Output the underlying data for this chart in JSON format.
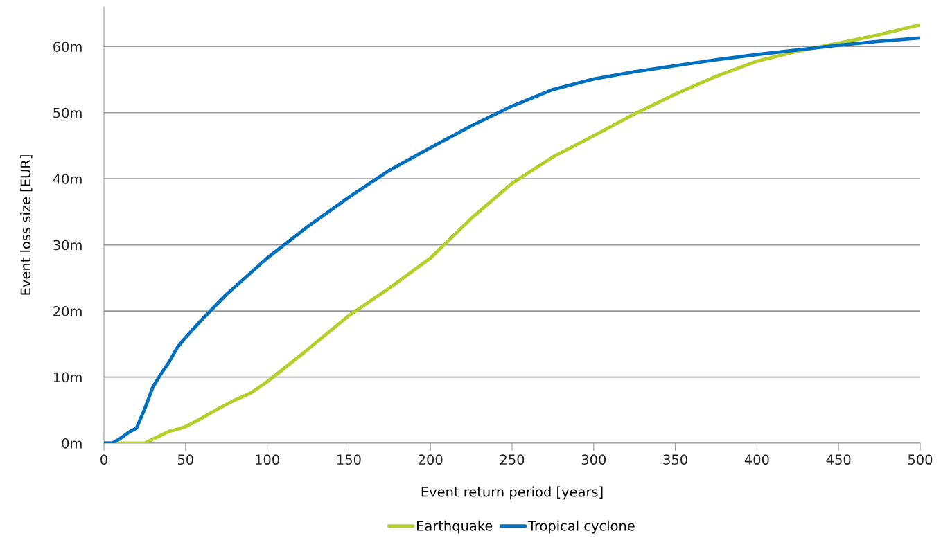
{
  "chart_data": {
    "type": "line",
    "xlabel": "Event return period [years]",
    "ylabel": "Event loss size [EUR]",
    "xlim": [
      0,
      500
    ],
    "xticks": [
      0,
      50,
      100,
      150,
      200,
      250,
      300,
      350,
      400,
      450,
      500
    ],
    "ylim": [
      0,
      66
    ],
    "yticks": [
      {
        "value": 0,
        "label": "0m"
      },
      {
        "value": 10,
        "label": "10m"
      },
      {
        "value": 20,
        "label": "20m"
      },
      {
        "value": 30,
        "label": "30m"
      },
      {
        "value": 40,
        "label": "40m"
      },
      {
        "value": 50,
        "label": "50m"
      },
      {
        "value": 60,
        "label": "60m"
      }
    ],
    "grid": "y",
    "legend": "bottom",
    "marker": "none",
    "line_style": "solid",
    "series": [
      {
        "name": "Earthquake",
        "color": "#b5cf2a",
        "x": [
          0,
          25,
          35,
          40,
          45,
          50,
          60,
          70,
          80,
          90,
          100,
          120,
          150,
          175,
          200,
          225,
          250,
          275,
          300,
          325,
          350,
          375,
          400,
          425,
          450,
          475,
          500
        ],
        "values": [
          0,
          0,
          1.2,
          1.8,
          2.1,
          2.5,
          3.8,
          5.2,
          6.5,
          7.6,
          9.3,
          13.2,
          19.3,
          23.5,
          28,
          34,
          39.3,
          43.3,
          46.5,
          49.8,
          52.8,
          55.5,
          57.8,
          59.3,
          60.5,
          61.8,
          63.3
        ]
      },
      {
        "name": "Tropical cyclone",
        "color": "#0070bf",
        "x": [
          0,
          5,
          10,
          15,
          20,
          25,
          30,
          35,
          40,
          45,
          50,
          60,
          75,
          100,
          125,
          150,
          175,
          200,
          225,
          250,
          275,
          300,
          325,
          350,
          375,
          400,
          425,
          450,
          475,
          500
        ],
        "values": [
          0,
          0,
          0.7,
          1.6,
          2.3,
          5.2,
          8.5,
          10.5,
          12.3,
          14.5,
          16,
          18.7,
          22.5,
          28,
          32.8,
          37.2,
          41.3,
          44.7,
          48,
          51,
          53.5,
          55.1,
          56.2,
          57.1,
          58,
          58.8,
          59.5,
          60.2,
          60.8,
          61.3
        ]
      }
    ]
  }
}
